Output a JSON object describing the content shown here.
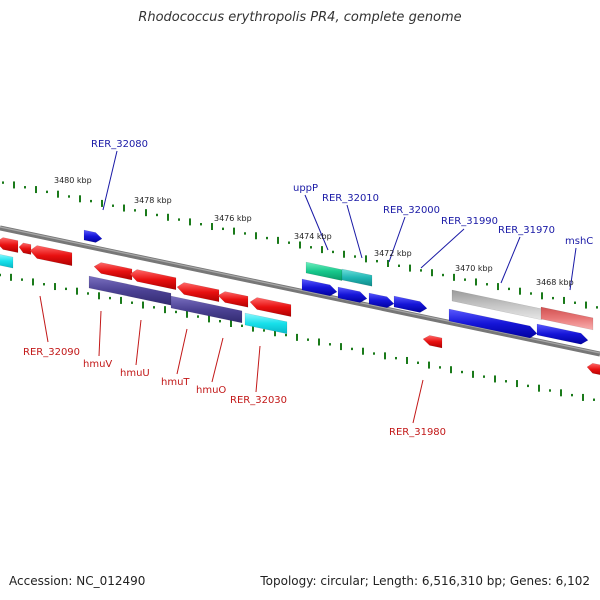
{
  "title": "Rhodococcus erythropolis PR4, complete genome",
  "footer": {
    "accession": "Accession: NC_012490",
    "topology": "Topology: circular; Length: 6,516,310 bp; Genes: 6,102"
  },
  "colors": {
    "red": "#e81010",
    "blue": "#1515d8",
    "navy": "#4c4294",
    "cyan": "#18e0ea",
    "teal": "#20b6b4",
    "green": "#18c88c",
    "gray": "#b0b0b0",
    "pink": "#e87070",
    "tick": "#1a7a1a",
    "blue_label": "#1a1aa6",
    "red_label": "#c21818"
  },
  "kbp_labels": [
    "3480 kbp",
    "3478 kbp",
    "3476 kbp",
    "3474 kbp",
    "3472 kbp",
    "3470 kbp",
    "3468 kbp"
  ],
  "gene_labels": {
    "top": [
      "RER_32080",
      "uppP",
      "RER_32010",
      "RER_32000",
      "RER_31990",
      "RER_31970",
      "mshC"
    ],
    "bottom": [
      "RER_32090",
      "hmuV",
      "hmuU",
      "hmuT",
      "hmuO",
      "RER_32030",
      "RER_31980"
    ]
  }
}
